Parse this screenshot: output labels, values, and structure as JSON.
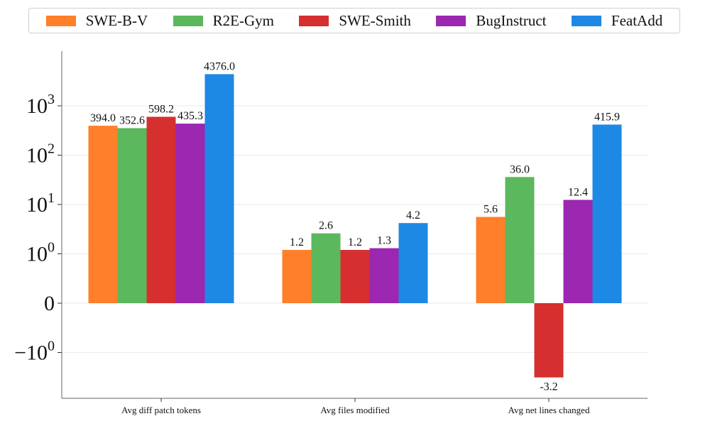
{
  "chart_data": {
    "type": "bar",
    "yscale": "symlog",
    "categories": [
      "Avg diff patch tokens",
      "Avg files modified",
      "Avg net lines changed"
    ],
    "series": [
      {
        "name": "SWE-B-V",
        "color": "#ff7f2a",
        "values": [
          394.0,
          1.2,
          5.6
        ]
      },
      {
        "name": "R2E-Gym",
        "color": "#5cb85c",
        "values": [
          352.6,
          2.6,
          36.0
        ]
      },
      {
        "name": "SWE-Smith",
        "color": "#d62f2f",
        "values": [
          598.2,
          1.2,
          -3.2
        ]
      },
      {
        "name": "BugInstruct",
        "color": "#9c27b0",
        "values": [
          435.3,
          1.3,
          12.4
        ]
      },
      {
        "name": "FeatAdd",
        "color": "#1e88e5",
        "values": [
          4376.0,
          4.2,
          415.9
        ]
      }
    ],
    "data_labels": [
      [
        "394.0",
        "1.2",
        "5.6"
      ],
      [
        "352.6",
        "2.6",
        "36.0"
      ],
      [
        "598.2",
        "1.2",
        "-3.2"
      ],
      [
        "435.3",
        "1.3",
        "12.4"
      ],
      [
        "4376.0",
        "4.2",
        "415.9"
      ]
    ],
    "yticks": [
      {
        "value": 1000,
        "base": "10",
        "exp": "3"
      },
      {
        "value": 100,
        "base": "10",
        "exp": "2"
      },
      {
        "value": 10,
        "base": "10",
        "exp": "1"
      },
      {
        "value": 1,
        "base": "10",
        "exp": "0"
      },
      {
        "value": 0,
        "base": "0",
        "exp": ""
      },
      {
        "value": -1,
        "base": "−10",
        "exp": "0"
      }
    ],
    "ylim": [
      -3.5,
      6000
    ],
    "grid": true,
    "legend_position": "top",
    "title": "",
    "xlabel": "",
    "ylabel": ""
  }
}
